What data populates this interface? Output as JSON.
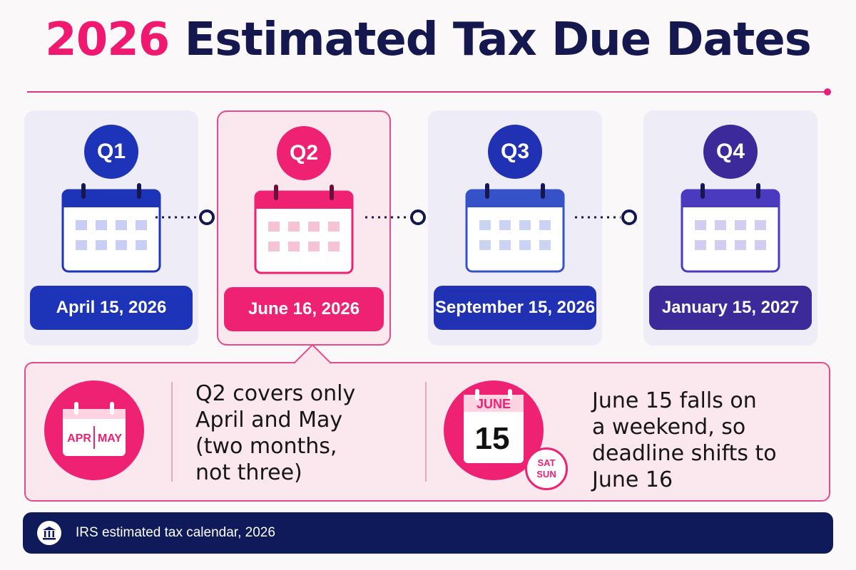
{
  "title": {
    "year": "2026",
    "rest": "Estimated Tax Due Dates"
  },
  "quarters": [
    {
      "label": "Q1",
      "date": "April 15, 2026",
      "color": "#1d33b8"
    },
    {
      "label": "Q2",
      "date": "June 16, 2026",
      "color": "#ee2173"
    },
    {
      "label": "Q3",
      "date": "September 15, 2026",
      "color": "#2131b4"
    },
    {
      "label": "Q4",
      "date": "January 15, 2027",
      "color": "#3d2a9a"
    }
  ],
  "detail": {
    "calendar_left": "APR",
    "calendar_right": "MAY",
    "note1": [
      "Q2 covers only",
      "April and May",
      "(two months,",
      "not three)"
    ],
    "calendar_month": "JUNE",
    "calendar_day": "15",
    "weekend_top": "SAT",
    "weekend_bottom": "SUN",
    "note2": [
      "June 15 falls on",
      "a weekend, so",
      "deadline shifts to",
      "June 16"
    ]
  },
  "footer": {
    "text": "IRS estimated tax calendar, 2026"
  },
  "colors": {
    "pink": "#ee2173",
    "navy": "#15184f",
    "card_bg": "#eeecf7",
    "q2_bg": "#fbe7ee"
  }
}
